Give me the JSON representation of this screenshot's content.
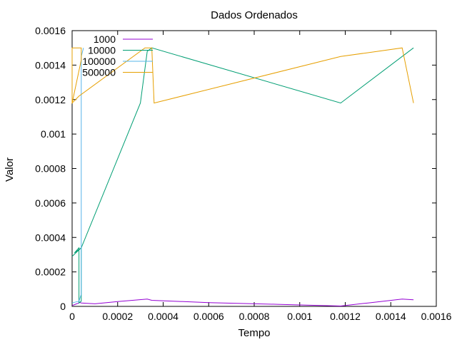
{
  "chart_data": {
    "type": "line",
    "title": "Dados Ordenados",
    "xlabel": "Tempo",
    "ylabel": "Valor",
    "xlim": [
      0,
      0.0016
    ],
    "ylim": [
      0,
      0.0016
    ],
    "x_ticks": [
      "0",
      "0.0002",
      "0.0004",
      "0.0006",
      "0.0008",
      "0.001",
      "0.0012",
      "0.0014",
      "0.0016"
    ],
    "y_ticks": [
      "0",
      "0.0002",
      "0.0004",
      "0.0006",
      "0.0008",
      "0.001",
      "0.0012",
      "0.0014",
      "0.0016"
    ],
    "grid": false,
    "legend_position": "top-left",
    "series": [
      {
        "name": "1000",
        "color": "#9400d3",
        "points": [
          [
            0.0,
            5e-06
          ],
          [
            1e-05,
            1e-05
          ],
          [
            2e-05,
            1.5e-05
          ],
          [
            3e-05,
            2e-05
          ],
          [
            3e-05,
            2.5e-05
          ],
          [
            4e-05,
            2e-05
          ],
          [
            0.0001,
            1.5e-05
          ],
          [
            0.0002,
            2.8e-05
          ],
          [
            0.00033,
            4.2e-05
          ],
          [
            0.00035,
            3.5e-05
          ],
          [
            0.0006,
            2.2e-05
          ],
          [
            0.0009,
            1.2e-05
          ],
          [
            0.00118,
            2e-06
          ],
          [
            0.0013,
            2e-05
          ],
          [
            0.00145,
            4.2e-05
          ],
          [
            0.0015,
            3.8e-05
          ]
        ]
      },
      {
        "name": "10000",
        "color": "#009e73",
        "points": [
          [
            0.0,
            0.00029
          ],
          [
            4e-05,
            0.00034
          ],
          [
            1e-05,
            0.00031
          ],
          [
            3e-05,
            0.00034
          ],
          [
            3e-05,
            2e-05
          ],
          [
            4e-05,
            3e-05
          ],
          [
            4e-05,
            0.00034
          ],
          [
            0.0003,
            0.00118
          ],
          [
            0.00033,
            0.00148
          ],
          [
            0.00035,
            0.0015
          ],
          [
            0.00118,
            0.00118
          ],
          [
            0.0015,
            0.0015
          ]
        ]
      },
      {
        "name": "100000",
        "color": "#56b4e9",
        "points": [
          [
            0.0,
            2e-05
          ],
          [
            3e-05,
            3e-05
          ],
          [
            4e-05,
            7e-05
          ],
          [
            4e-05,
            0.00026
          ],
          [
            4e-05,
            0.00064
          ],
          [
            4e-05,
            0.00088
          ],
          [
            4e-05,
            0.00118
          ],
          [
            4e-05,
            0.00145
          ],
          [
            5e-05,
            0.0015
          ]
        ]
      },
      {
        "name": "500000",
        "color": "#e69f00",
        "points": [
          [
            0.0,
            0.00118
          ],
          [
            0.0,
            0.0015
          ],
          [
            4e-05,
            0.0015
          ],
          [
            4e-05,
            0.00143
          ],
          [
            0.0,
            0.00118
          ],
          [
            3e-05,
            0.00122
          ],
          [
            0.00032,
            0.0015
          ],
          [
            0.00035,
            0.0015
          ],
          [
            0.00036,
            0.00118
          ],
          [
            0.00118,
            0.00145
          ],
          [
            0.00145,
            0.0015
          ],
          [
            0.0015,
            0.00118
          ]
        ]
      }
    ]
  }
}
